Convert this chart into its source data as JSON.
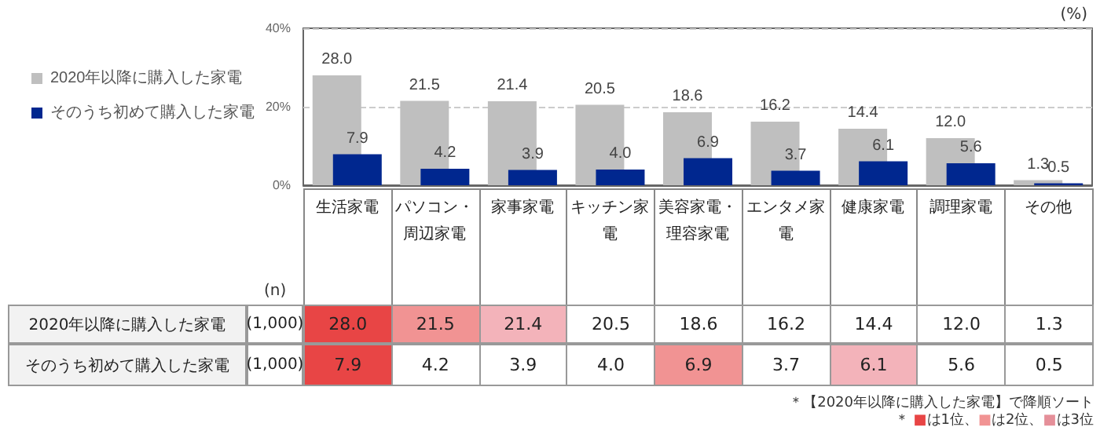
{
  "chart_data": {
    "type": "bar",
    "categories": [
      "生活家電",
      "パソコン・周辺家電",
      "家事家電",
      "キッチン家電",
      "美容家電・理容家電",
      "エンタメ家電",
      "健康家電",
      "調理家電",
      "その他"
    ],
    "series": [
      {
        "name": "2020年以降に購入した家電",
        "color": "#bfbfbf",
        "values": [
          28.0,
          21.5,
          21.4,
          20.5,
          18.6,
          16.2,
          14.4,
          12.0,
          1.3
        ],
        "value_labels": [
          "28.0",
          "21.5",
          "21.4",
          "20.5",
          "18.6",
          "16.2",
          "14.4",
          "12.0",
          "1.3"
        ]
      },
      {
        "name": "そのうち初めて購入した家電",
        "color": "#00278f",
        "values": [
          7.9,
          4.2,
          3.9,
          4.0,
          6.9,
          3.7,
          6.1,
          5.6,
          0.5
        ],
        "value_labels": [
          "7.9",
          "4.2",
          "3.9",
          "4.0",
          "6.9",
          "3.7",
          "6.1",
          "5.6",
          "0.5"
        ]
      }
    ],
    "ylim": [
      0,
      40
    ],
    "yticks": [
      {
        "value": 0,
        "label": "0%"
      },
      {
        "value": 20,
        "label": "20%"
      },
      {
        "value": 40,
        "label": "40%"
      }
    ],
    "grid": "y",
    "legend": "left",
    "annotations": [
      "(%)",
      "(n)",
      "(1,000)",
      "(1,000)",
      "＊【2020年以降に購入した家電】で降順ソート",
      "＊ ■は1位、■は2位、■は3位"
    ]
  }
}
